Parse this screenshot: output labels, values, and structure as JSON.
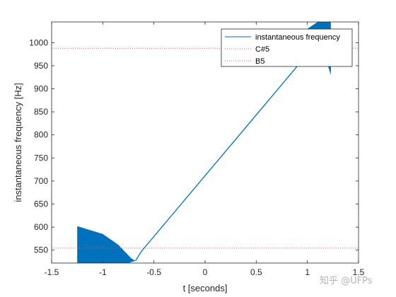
{
  "chart_data": {
    "type": "line",
    "title": "",
    "xlabel": "t [seconds]",
    "ylabel": "instantaneous frequency [Hz]",
    "xlim": [
      -1.5,
      1.5
    ],
    "ylim": [
      522,
      1045
    ],
    "xticks": [
      -1.5,
      -1,
      -0.5,
      0,
      0.5,
      1,
      1.5
    ],
    "yticks": [
      550,
      600,
      650,
      700,
      750,
      800,
      850,
      900,
      950,
      1000
    ],
    "grid": false,
    "legend_position": "top-right",
    "series": [
      {
        "name": "instantaneous frequency",
        "style": "solid",
        "color": "#0072bd",
        "center_line": {
          "x": [
            -0.68,
            -0.62,
            1.0,
            1.13
          ],
          "y": [
            527,
            548,
            975,
            1012
          ]
        },
        "band_left": {
          "upper": {
            "x": [
              -1.25,
              -1.0,
              -0.85,
              -0.72,
              -0.68
            ],
            "y": [
              602,
              585,
              562,
              532,
              527
            ]
          },
          "lower": {
            "x": [
              -1.25,
              -1.0,
              -0.75,
              -0.68
            ],
            "y": [
              522,
              522,
              522,
              527
            ]
          }
        },
        "band_right": {
          "upper": {
            "x": [
              1.0,
              1.1,
              1.23
            ],
            "y": [
              1030,
              1045,
              1045
            ]
          },
          "lower": {
            "x": [
              1.0,
              1.12,
              1.2,
              1.23
            ],
            "y": [
              975,
              980,
              950,
              930
            ]
          }
        }
      },
      {
        "name": "C#5",
        "style": "dotted",
        "color": "#e06060",
        "y": 554.37
      },
      {
        "name": "B5",
        "style": "dotted",
        "color": "#e06060",
        "y": 987.77
      }
    ]
  },
  "watermark": "知乎 @UFPs"
}
